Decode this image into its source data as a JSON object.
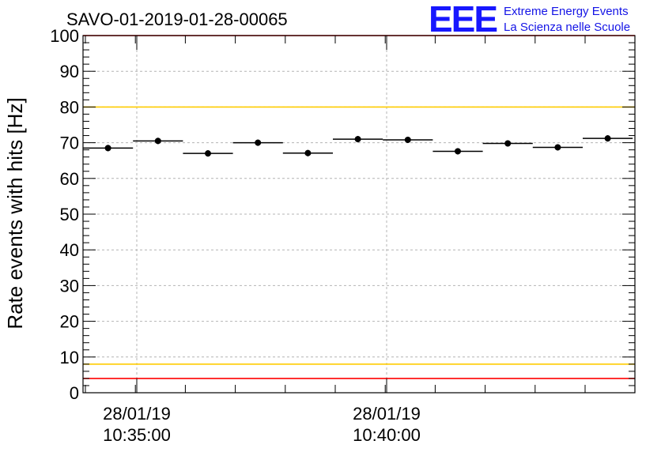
{
  "header": {
    "title": "SAVO-01-2019-01-28-00065",
    "logo_big": "EEE",
    "logo_line1": "Extreme Energy Events",
    "logo_line2": "La Scienza nelle Scuole"
  },
  "chart_data": {
    "type": "scatter",
    "title": "SAVO-01-2019-01-28-00065",
    "ylabel": "Rate events with hits [Hz]",
    "xlabel": "",
    "ylim": [
      0,
      100
    ],
    "y_ticks": [
      "0",
      "10",
      "20",
      "30",
      "40",
      "50",
      "60",
      "70",
      "80",
      "90",
      "100"
    ],
    "x_ticks": [
      {
        "date": "28/01/19",
        "time": "10:35:00"
      },
      {
        "date": "28/01/19",
        "time": "10:40:00"
      }
    ],
    "grid": true,
    "reference_lines": [
      {
        "value": 100,
        "color": "#ff0000"
      },
      {
        "value": 80,
        "color": "#ffcc00"
      },
      {
        "value": 8,
        "color": "#ffcc00"
      },
      {
        "value": 4,
        "color": "#ff0000"
      }
    ],
    "series": [
      {
        "values": [
          68.5,
          70.5,
          67.0,
          70.0,
          67.1,
          71.0,
          70.8,
          67.6,
          69.8,
          68.7,
          71.2
        ]
      }
    ]
  }
}
